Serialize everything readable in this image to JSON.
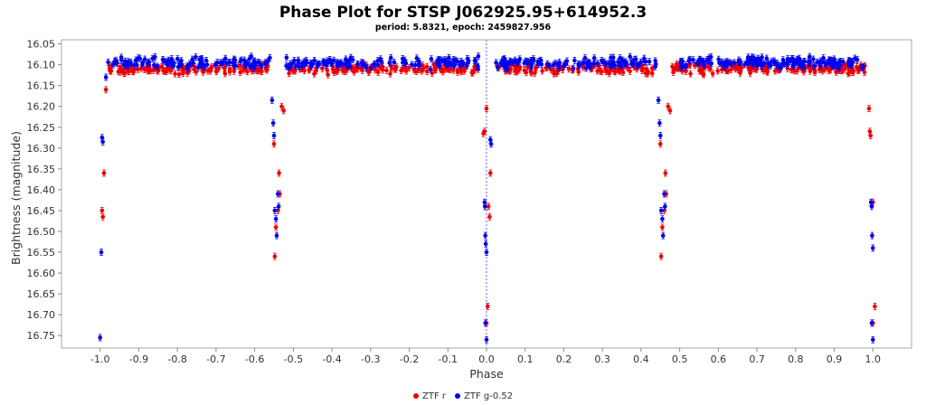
{
  "chart_data": {
    "type": "scatter",
    "title": "Phase Plot for STSP J062925.95+614952.3",
    "subtitle": "period: 5.8321, epoch: 2459827.956",
    "xlabel": "Phase",
    "ylabel": "Brightness (magnitude)",
    "xlim": [
      -1.1,
      1.1
    ],
    "ylim": [
      16.04,
      16.78
    ],
    "y_inverted": true,
    "x_ticks": [
      -1.0,
      -0.9,
      -0.8,
      -0.7,
      -0.6,
      -0.5,
      -0.4,
      -0.3,
      -0.2,
      -0.1,
      0.0,
      0.1,
      0.2,
      0.3,
      0.4,
      0.5,
      0.6,
      0.7,
      0.8,
      0.9,
      1.0
    ],
    "x_tick_labels": [
      "-1.0",
      "-0.9",
      "-0.8",
      "-0.7",
      "-0.6",
      "-0.5",
      "-0.4",
      "-0.3",
      "-0.2",
      "-0.1",
      "0.0",
      "0.1",
      "0.2",
      "0.3",
      "0.4",
      "0.5",
      "0.6",
      "0.7",
      "0.8",
      "0.9",
      "1.0"
    ],
    "y_ticks": [
      16.05,
      16.1,
      16.15,
      16.2,
      16.25,
      16.3,
      16.35,
      16.4,
      16.45,
      16.5,
      16.55,
      16.6,
      16.65,
      16.7,
      16.75
    ],
    "y_tick_labels": [
      "16.05",
      "16.10",
      "16.15",
      "16.20",
      "16.25",
      "16.30",
      "16.35",
      "16.40",
      "16.45",
      "16.50",
      "16.55",
      "16.60",
      "16.65",
      "16.70",
      "16.75"
    ],
    "grid": false,
    "reference_line_x": 0.0,
    "legend_position": "bottom-center",
    "series": [
      {
        "name": "ZTF r",
        "color": "#ee0000",
        "baseline": 16.11,
        "scatter": 0.012,
        "eclipse_points": [
          [
            -0.99,
            16.36
          ],
          [
            -0.995,
            16.45
          ],
          [
            -0.993,
            16.465
          ],
          [
            -0.985,
            16.16
          ],
          [
            -0.55,
            16.29
          ],
          [
            -0.548,
            16.56
          ],
          [
            -0.545,
            16.49
          ],
          [
            -0.54,
            16.45
          ],
          [
            -0.537,
            16.36
          ],
          [
            -0.535,
            16.41
          ],
          [
            -0.53,
            16.2
          ],
          [
            -0.525,
            16.21
          ],
          [
            0.0,
            16.205
          ],
          [
            -0.005,
            16.26
          ],
          [
            -0.008,
            16.265
          ],
          [
            0.005,
            16.44
          ],
          [
            0.008,
            16.465
          ],
          [
            0.01,
            16.36
          ],
          [
            0.003,
            16.68
          ],
          [
            0.0,
            16.72
          ],
          [
            0.45,
            16.29
          ],
          [
            0.452,
            16.56
          ],
          [
            0.455,
            16.49
          ],
          [
            0.46,
            16.45
          ],
          [
            0.463,
            16.36
          ],
          [
            0.465,
            16.41
          ],
          [
            0.47,
            16.2
          ],
          [
            0.475,
            16.21
          ],
          [
            0.99,
            16.205
          ],
          [
            0.992,
            16.26
          ],
          [
            0.994,
            16.27
          ],
          [
            1.0,
            16.43
          ],
          [
            1.005,
            16.68
          ],
          [
            1.0,
            16.72
          ]
        ]
      },
      {
        "name": "ZTF g-0.52",
        "color": "#0000ee",
        "baseline": 16.095,
        "scatter": 0.014,
        "eclipse_points": [
          [
            -0.995,
            16.275
          ],
          [
            -0.993,
            16.285
          ],
          [
            -0.997,
            16.55
          ],
          [
            -1.0,
            16.755
          ],
          [
            -0.985,
            16.13
          ],
          [
            -0.555,
            16.185
          ],
          [
            -0.552,
            16.24
          ],
          [
            -0.55,
            16.27
          ],
          [
            -0.548,
            16.45
          ],
          [
            -0.545,
            16.47
          ],
          [
            -0.543,
            16.51
          ],
          [
            -0.54,
            16.41
          ],
          [
            -0.538,
            16.44
          ],
          [
            -0.005,
            16.43
          ],
          [
            -0.004,
            16.44
          ],
          [
            -0.003,
            16.51
          ],
          [
            -0.002,
            16.53
          ],
          [
            0.0,
            16.55
          ],
          [
            -0.003,
            16.72
          ],
          [
            0.0,
            16.76
          ],
          [
            0.01,
            16.28
          ],
          [
            0.012,
            16.29
          ],
          [
            0.445,
            16.185
          ],
          [
            0.448,
            16.24
          ],
          [
            0.45,
            16.27
          ],
          [
            0.452,
            16.45
          ],
          [
            0.455,
            16.47
          ],
          [
            0.457,
            16.51
          ],
          [
            0.46,
            16.41
          ],
          [
            0.462,
            16.44
          ],
          [
            0.995,
            16.43
          ],
          [
            0.997,
            16.44
          ],
          [
            0.998,
            16.51
          ],
          [
            1.0,
            16.54
          ],
          [
            0.997,
            16.72
          ],
          [
            1.0,
            16.76
          ]
        ]
      }
    ]
  }
}
